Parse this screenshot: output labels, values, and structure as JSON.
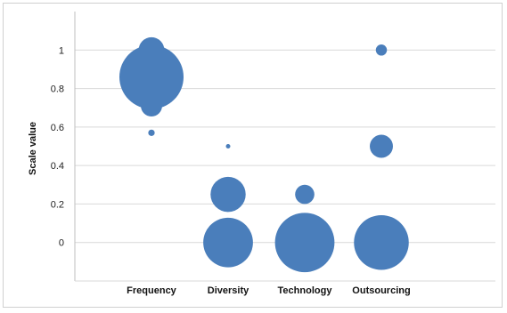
{
  "chart_data": {
    "type": "bubble",
    "title": "",
    "xlabel": "",
    "ylabel": "Scale value",
    "ylim": [
      -0.2,
      1.2
    ],
    "yticks": [
      0,
      0.2,
      0.4,
      0.6,
      0.8,
      1
    ],
    "ytick_labels": [
      "0",
      "0.2",
      "0.4",
      "0.6",
      "0.8",
      "1"
    ],
    "categories": [
      "Frequency",
      "Diversity",
      "Technology",
      "Outsourcing"
    ],
    "grid": true,
    "legend": "none",
    "bubble_color": "#4a7ebb",
    "points": [
      {
        "category": "Frequency",
        "y": 1.0,
        "size": 0.16
      },
      {
        "category": "Frequency",
        "y": 0.86,
        "size": 1.0
      },
      {
        "category": "Frequency",
        "y": 0.71,
        "size": 0.11
      },
      {
        "category": "Frequency",
        "y": 0.57,
        "size": 0.01
      },
      {
        "category": "Diversity",
        "y": 0.5,
        "size": 0.003
      },
      {
        "category": "Diversity",
        "y": 0.25,
        "size": 0.3
      },
      {
        "category": "Diversity",
        "y": 0.0,
        "size": 0.6
      },
      {
        "category": "Technology",
        "y": 0.25,
        "size": 0.09
      },
      {
        "category": "Technology",
        "y": 0.0,
        "size": 0.86
      },
      {
        "category": "Outsourcing",
        "y": 1.0,
        "size": 0.03
      },
      {
        "category": "Outsourcing",
        "y": 0.5,
        "size": 0.13
      },
      {
        "category": "Outsourcing",
        "y": 0.0,
        "size": 0.73
      }
    ]
  }
}
